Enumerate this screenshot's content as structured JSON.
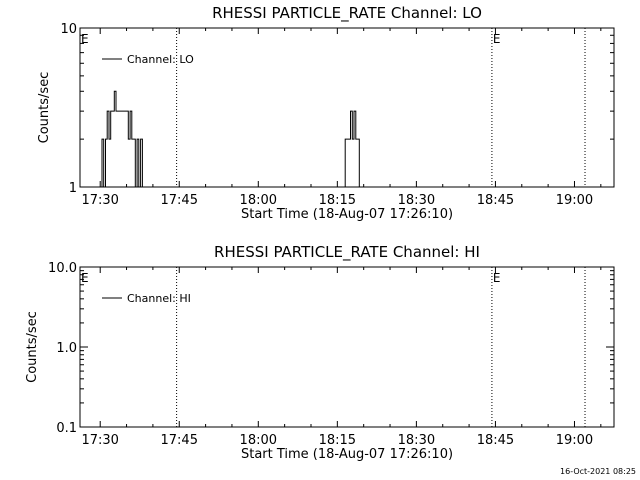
{
  "chart_data": [
    {
      "type": "line",
      "title": "RHESSI PARTICLE_RATE Channel: LO",
      "ylabel": "Counts/sec",
      "xlabel": "Start Time (18-Aug-07 17:26:10)",
      "yscale": "log",
      "ylim": [
        1,
        10
      ],
      "yticks": [
        1,
        10
      ],
      "ytick_labels": [
        "1",
        "10"
      ],
      "xlim": [
        "17:26:10",
        "19:07:30"
      ],
      "xticks": [
        "17:30",
        "17:45",
        "18:00",
        "18:15",
        "18:30",
        "18:45",
        "19:00"
      ],
      "legend": {
        "entries": [
          "Channel: LO"
        ],
        "placement": "top-left"
      },
      "series": [
        {
          "name": "Channel: LO",
          "x": [
            "17:30:00",
            "17:30:20",
            "17:30:40",
            "17:31:00",
            "17:31:20",
            "17:31:40",
            "17:32:00",
            "17:32:20",
            "17:32:40",
            "17:33:00",
            "17:33:20",
            "17:33:40",
            "17:34:00",
            "17:34:20",
            "17:34:40",
            "17:35:00",
            "17:35:20",
            "17:35:40",
            "17:36:00",
            "17:36:20",
            "17:36:40",
            "17:37:00",
            "17:37:20",
            "17:37:40",
            "17:38:00",
            "18:16:10",
            "18:16:30",
            "18:16:50",
            "18:17:10",
            "18:17:30",
            "18:17:50",
            "18:18:10",
            "18:18:30",
            "18:18:50",
            "18:19:10"
          ],
          "y": [
            1,
            2,
            1,
            2,
            3,
            2,
            3,
            3,
            4,
            3,
            3,
            3,
            3,
            3,
            3,
            3,
            2,
            3,
            2,
            2,
            1,
            2,
            1,
            2,
            1,
            1,
            2,
            2,
            2,
            3,
            2,
            3,
            2,
            2,
            1
          ]
        }
      ],
      "vertical_markers": [
        {
          "time": "17:26:10",
          "label": "E"
        },
        {
          "time": "17:44:30",
          "label": ""
        },
        {
          "time": "18:44:20",
          "label": "E"
        },
        {
          "time": "19:02:00",
          "label": ""
        }
      ]
    },
    {
      "type": "line",
      "title": "RHESSI PARTICLE_RATE Channel: HI",
      "ylabel": "Counts/sec",
      "xlabel": "Start Time (18-Aug-07 17:26:10)",
      "yscale": "log",
      "ylim": [
        0.1,
        10
      ],
      "yticks": [
        0.1,
        1,
        10
      ],
      "ytick_labels": [
        "0.1",
        "1.0",
        "10.0"
      ],
      "xlim": [
        "17:26:10",
        "19:07:30"
      ],
      "xticks": [
        "17:30",
        "17:45",
        "18:00",
        "18:15",
        "18:30",
        "18:45",
        "19:00"
      ],
      "legend": {
        "entries": [
          "Channel: HI"
        ],
        "placement": "top-left"
      },
      "series": [
        {
          "name": "Channel: HI",
          "x": [],
          "y": []
        }
      ],
      "vertical_markers": [
        {
          "time": "17:26:10",
          "label": "E"
        },
        {
          "time": "17:44:30",
          "label": ""
        },
        {
          "time": "18:44:20",
          "label": "E"
        },
        {
          "time": "19:02:00",
          "label": ""
        }
      ]
    }
  ],
  "timestamp": "16-Oct-2021 08:25"
}
